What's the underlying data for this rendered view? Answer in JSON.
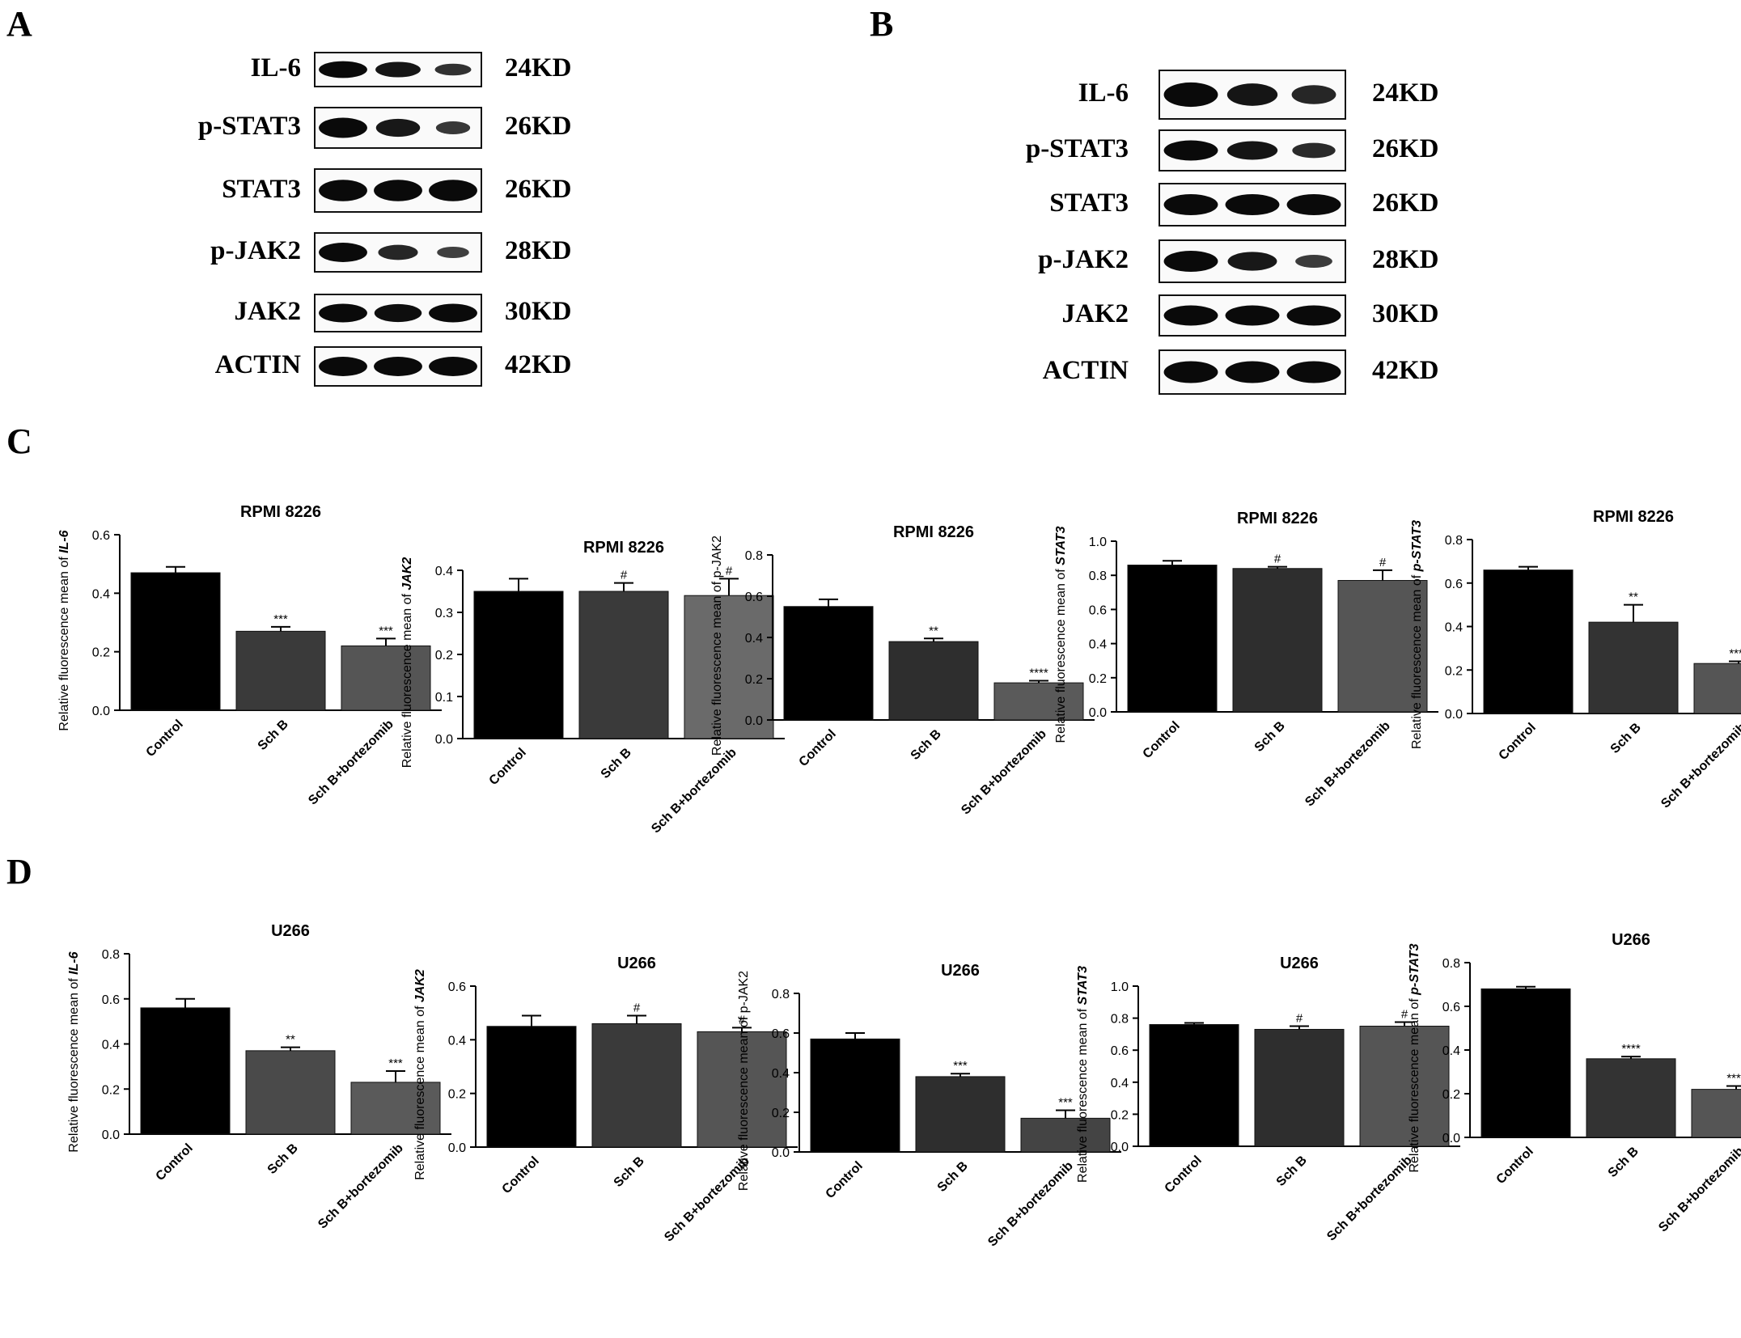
{
  "panels": {
    "A": "A",
    "B": "B",
    "C": "C",
    "D": "D"
  },
  "western_blots": [
    {
      "panel": "A",
      "rows": [
        {
          "protein": "IL-6",
          "kd": "24KD",
          "intensity": [
            1.0,
            0.85,
            0.45
          ]
        },
        {
          "protein": "p-STAT3",
          "kd": "26KD",
          "intensity": [
            1.0,
            0.8,
            0.35
          ]
        },
        {
          "protein": "STAT3",
          "kd": "26KD",
          "intensity": [
            1.0,
            1.0,
            1.0
          ]
        },
        {
          "protein": "p-JAK2",
          "kd": "28KD",
          "intensity": [
            1.0,
            0.6,
            0.25
          ]
        },
        {
          "protein": "JAK2",
          "kd": "30KD",
          "intensity": [
            1.0,
            0.95,
            1.0
          ]
        },
        {
          "protein": "ACTIN",
          "kd": "42KD",
          "intensity": [
            1.0,
            1.0,
            1.0
          ]
        }
      ]
    },
    {
      "panel": "B",
      "rows": [
        {
          "protein": "IL-6",
          "kd": "24KD",
          "intensity": [
            1.0,
            0.85,
            0.6
          ]
        },
        {
          "protein": "p-STAT3",
          "kd": "26KD",
          "intensity": [
            1.0,
            0.85,
            0.55
          ]
        },
        {
          "protein": "STAT3",
          "kd": "26KD",
          "intensity": [
            1.0,
            1.0,
            1.0
          ]
        },
        {
          "protein": "p-JAK2",
          "kd": "28KD",
          "intensity": [
            1.0,
            0.8,
            0.3
          ]
        },
        {
          "protein": "JAK2",
          "kd": "30KD",
          "intensity": [
            1.0,
            1.0,
            1.0
          ]
        },
        {
          "protein": "ACTIN",
          "kd": "42KD",
          "intensity": [
            1.0,
            1.0,
            1.0
          ]
        }
      ]
    }
  ],
  "chart_data": [
    {
      "type": "bar",
      "panel": "C",
      "title": "RPMI 8226",
      "ylabel_prefix": "Relative fluorescence mean of ",
      "ylabel_italic": "IL-6",
      "categories": [
        "Control",
        "Sch B",
        "Sch B+bortezomib"
      ],
      "values": [
        0.47,
        0.27,
        0.22
      ],
      "errors": [
        0.02,
        0.015,
        0.025
      ],
      "annotations": [
        "",
        "***",
        "***"
      ],
      "ylim": [
        0,
        0.6
      ],
      "ticks": [
        "0.0",
        "0.2",
        "0.4",
        "0.6"
      ],
      "colors": [
        "#000000",
        "#3a3a3a",
        "#555555"
      ]
    },
    {
      "type": "bar",
      "panel": "C",
      "title": "RPMI 8226",
      "ylabel_prefix": "Relative fluorescence mean of ",
      "ylabel_italic": "JAK2",
      "categories": [
        "Control",
        "Sch B",
        "Sch B+bortezomib"
      ],
      "values": [
        0.35,
        0.35,
        0.34
      ],
      "errors": [
        0.03,
        0.02,
        0.04
      ],
      "annotations": [
        "",
        "#",
        "#"
      ],
      "ylim": [
        0,
        0.4
      ],
      "ticks": [
        "0.0",
        "0.1",
        "0.2",
        "0.3",
        "0.4"
      ],
      "colors": [
        "#000000",
        "#3a3a3a",
        "#6a6a6a"
      ]
    },
    {
      "type": "bar",
      "panel": "C",
      "title": "RPMI 8226",
      "ylabel_prefix": "Relative fluorescence mean of  p-JAK2",
      "ylabel_italic": "",
      "categories": [
        "Control",
        "Sch B",
        "Sch B+bortezomib"
      ],
      "values": [
        0.55,
        0.38,
        0.18
      ],
      "errors": [
        0.035,
        0.015,
        0.01
      ],
      "annotations": [
        "",
        "**",
        "****"
      ],
      "ylim": [
        0,
        0.8
      ],
      "ticks": [
        "0.0",
        "0.2",
        "0.4",
        "0.6",
        "0.8"
      ],
      "colors": [
        "#000000",
        "#2e2e2e",
        "#5a5a5a"
      ]
    },
    {
      "type": "bar",
      "panel": "C",
      "title": "RPMI 8226",
      "ylabel_prefix": "Relative fluorescence mean of ",
      "ylabel_italic": "STAT3",
      "categories": [
        "Control",
        "Sch B",
        "Sch B+bortezomib"
      ],
      "values": [
        0.86,
        0.84,
        0.77
      ],
      "errors": [
        0.025,
        0.01,
        0.06
      ],
      "annotations": [
        "",
        "#",
        "#"
      ],
      "ylim": [
        0,
        1.0
      ],
      "ticks": [
        "0.0",
        "0.2",
        "0.4",
        "0.6",
        "0.8",
        "1.0"
      ],
      "colors": [
        "#000000",
        "#2e2e2e",
        "#555555"
      ]
    },
    {
      "type": "bar",
      "panel": "C",
      "title": "RPMI 8226",
      "ylabel_prefix": "Relative fluorescence mean of ",
      "ylabel_italic": "p-STAT3",
      "categories": [
        "Control",
        "Sch B",
        "Sch B+bortezomib"
      ],
      "values": [
        0.66,
        0.42,
        0.23
      ],
      "errors": [
        0.015,
        0.08,
        0.01
      ],
      "annotations": [
        "",
        "**",
        "****"
      ],
      "ylim": [
        0,
        0.8
      ],
      "ticks": [
        "0.0",
        "0.2",
        "0.4",
        "0.6",
        "0.8"
      ],
      "colors": [
        "#000000",
        "#333333",
        "#555555"
      ]
    },
    {
      "type": "bar",
      "panel": "D",
      "title": "U266",
      "ylabel_prefix": "Relative fluorescence mean of ",
      "ylabel_italic": "IL-6",
      "categories": [
        "Control",
        "Sch B",
        "Sch B+bortezomib"
      ],
      "values": [
        0.56,
        0.37,
        0.23
      ],
      "errors": [
        0.04,
        0.015,
        0.05
      ],
      "annotations": [
        "",
        "**",
        "***"
      ],
      "ylim": [
        0,
        0.8
      ],
      "ticks": [
        "0.0",
        "0.2",
        "0.4",
        "0.6",
        "0.8"
      ],
      "colors": [
        "#000000",
        "#4a4a4a",
        "#5a5a5a"
      ]
    },
    {
      "type": "bar",
      "panel": "D",
      "title": "U266",
      "ylabel_prefix": "Relative fluorescence mean of ",
      "ylabel_italic": "JAK2",
      "categories": [
        "Control",
        "Sch B",
        "Sch B+bortezomib"
      ],
      "values": [
        0.45,
        0.46,
        0.43
      ],
      "errors": [
        0.04,
        0.03,
        0.015
      ],
      "annotations": [
        "",
        "#",
        "#"
      ],
      "ylim": [
        0,
        0.6
      ],
      "ticks": [
        "0.0",
        "0.2",
        "0.4",
        "0.6"
      ],
      "colors": [
        "#000000",
        "#3a3a3a",
        "#555555"
      ]
    },
    {
      "type": "bar",
      "panel": "D",
      "title": "U266",
      "ylabel_prefix": "Relative fluorescence mean of  p-JAK2",
      "ylabel_italic": "",
      "categories": [
        "Control",
        "Sch B",
        "Sch B+bortezomib"
      ],
      "values": [
        0.57,
        0.38,
        0.17
      ],
      "errors": [
        0.03,
        0.015,
        0.04
      ],
      "annotations": [
        "",
        "***",
        "***"
      ],
      "ylim": [
        0,
        0.8
      ],
      "ticks": [
        "0.0",
        "0.2",
        "0.4",
        "0.6",
        "0.8"
      ],
      "colors": [
        "#000000",
        "#2e2e2e",
        "#444444"
      ]
    },
    {
      "type": "bar",
      "panel": "D",
      "title": "U266",
      "ylabel_prefix": "Relative fluorescence mean of ",
      "ylabel_italic": "STAT3",
      "categories": [
        "Control",
        "Sch B",
        "Sch B+bortezomib"
      ],
      "values": [
        0.76,
        0.73,
        0.75
      ],
      "errors": [
        0.01,
        0.02,
        0.025
      ],
      "annotations": [
        "",
        "#",
        "#"
      ],
      "ylim": [
        0,
        1.0
      ],
      "ticks": [
        "0.0",
        "0.2",
        "0.4",
        "0.6",
        "0.8",
        "1.0"
      ],
      "colors": [
        "#000000",
        "#2e2e2e",
        "#555555"
      ]
    },
    {
      "type": "bar",
      "panel": "D",
      "title": "U266",
      "ylabel_prefix": "Relative fluorescence mean of ",
      "ylabel_italic": "p-STAT3",
      "categories": [
        "Control",
        "Sch B",
        "Sch B+bortezomib"
      ],
      "values": [
        0.68,
        0.36,
        0.22
      ],
      "errors": [
        0.01,
        0.01,
        0.015
      ],
      "annotations": [
        "",
        "****",
        "****"
      ],
      "ylim": [
        0,
        0.8
      ],
      "ticks": [
        "0.0",
        "0.2",
        "0.4",
        "0.6",
        "0.8"
      ],
      "colors": [
        "#000000",
        "#333333",
        "#555555"
      ]
    }
  ]
}
